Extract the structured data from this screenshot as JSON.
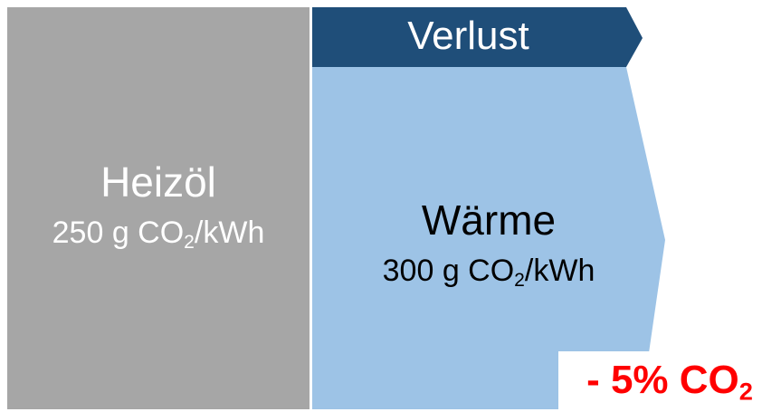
{
  "colors": {
    "input_block": "#a6a6a6",
    "loss_arrow": "#1f4e79",
    "heat_arrow": "#9dc3e6",
    "reduction_text": "#ff0000"
  },
  "input": {
    "title": "Heizöl",
    "value_prefix": "250 g CO",
    "value_sub": "2",
    "value_suffix": "/kWh"
  },
  "loss": {
    "label": "Verlust"
  },
  "heat": {
    "title": "Wärme",
    "value_prefix": "300 g CO",
    "value_sub": "2",
    "value_suffix": "/kWh"
  },
  "reduction": {
    "prefix": "- 5% CO",
    "sub": "2"
  }
}
